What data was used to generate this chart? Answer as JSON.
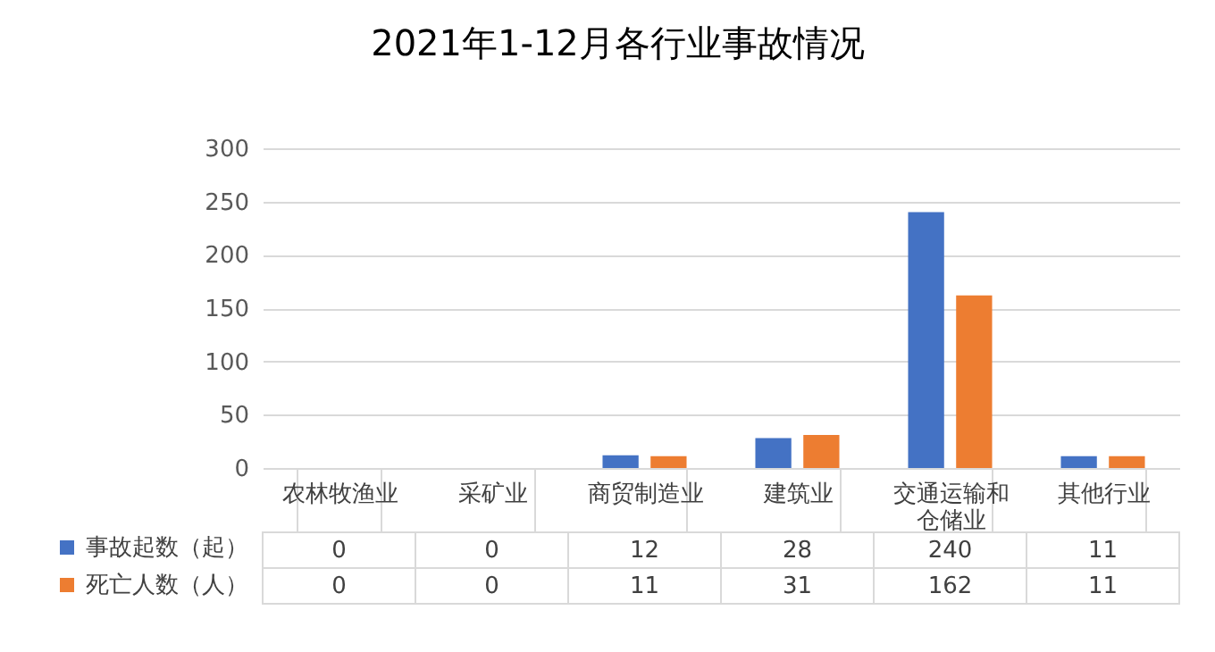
{
  "chart_data": {
    "type": "bar",
    "title": "2021年1-12月各行业事故情况",
    "categories": [
      "农林牧渔业",
      "采矿业",
      "商贸制造业",
      "建筑业",
      "交通运输和仓储业",
      "其他行业"
    ],
    "series": [
      {
        "name": "事故起数（起）",
        "color": "#4472c4",
        "values": [
          0,
          0,
          12,
          28,
          240,
          11
        ]
      },
      {
        "name": "死亡人数（人）",
        "color": "#ed7d31",
        "values": [
          0,
          0,
          11,
          31,
          162,
          11
        ]
      }
    ],
    "ylim": [
      0,
      300
    ],
    "yticks": [
      0,
      50,
      100,
      150,
      200,
      250,
      300
    ],
    "grid": "y",
    "legend": "bottom left",
    "data_labels": true
  }
}
